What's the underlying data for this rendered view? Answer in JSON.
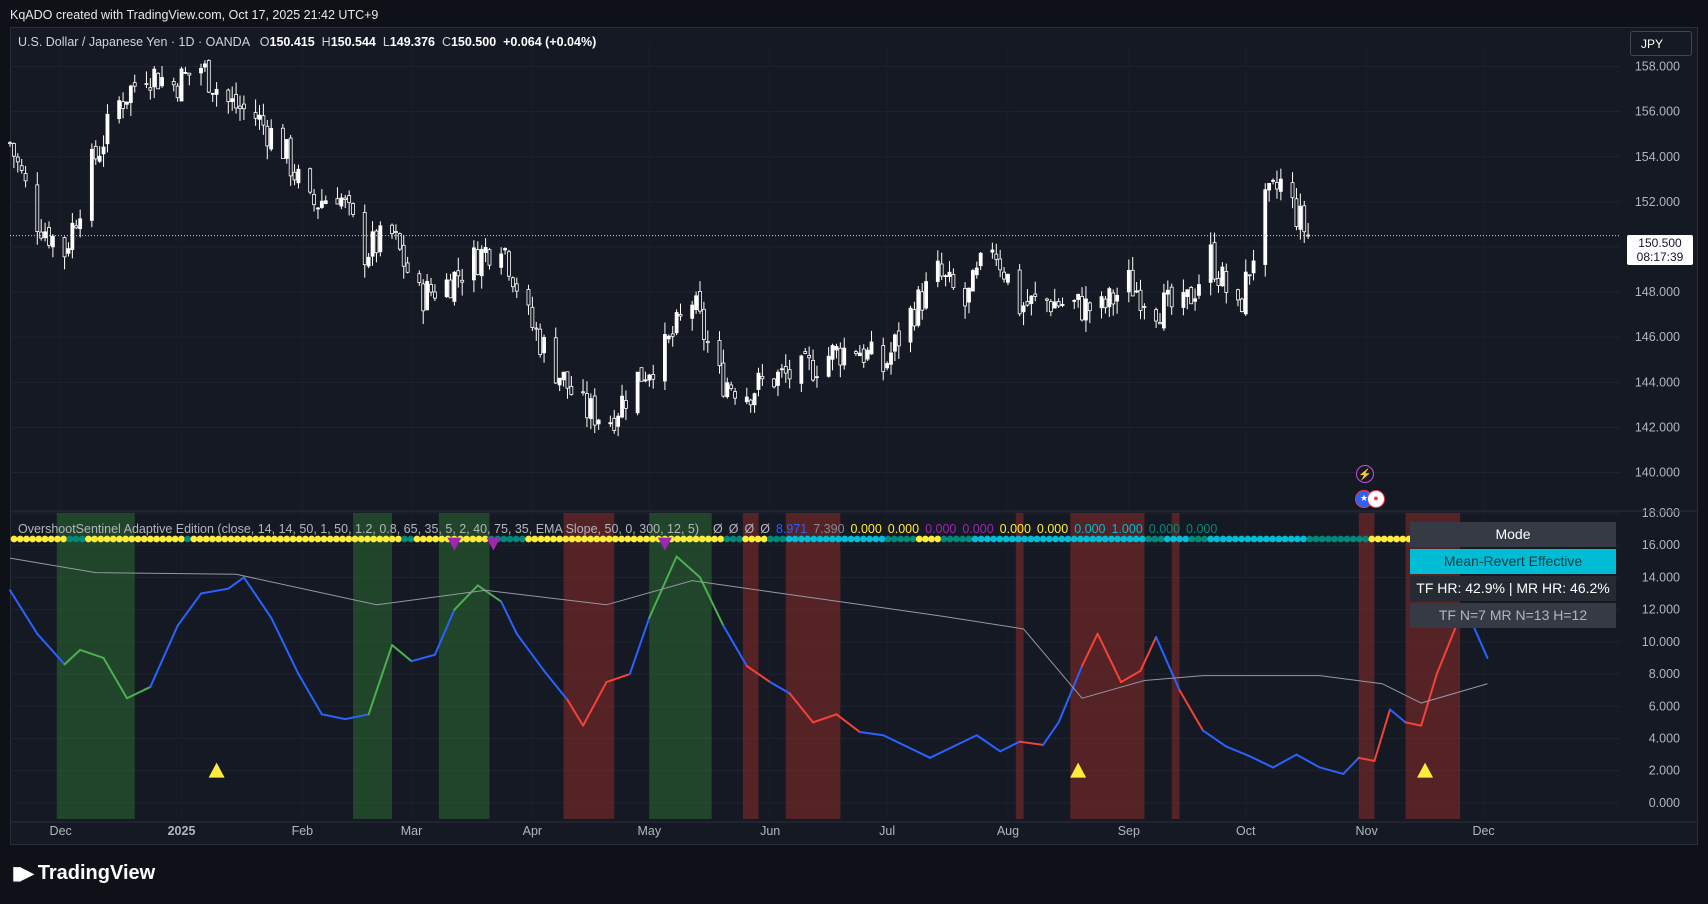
{
  "header": {
    "attribution": "KqADO created with TradingView.com, Oct 17, 2025 21:42 UTC+9"
  },
  "symbol": {
    "name": "U.S. Dollar / Japanese Yen · 1D · OANDA",
    "open_label": "O",
    "open": "150.415",
    "high_label": "H",
    "high": "150.544",
    "low_label": "L",
    "low": "149.376",
    "close_label": "C",
    "close": "150.500",
    "change": "+0.064 (+0.04%)",
    "currency_button": "JPY",
    "last_price": "150.500",
    "countdown": "08:17:39"
  },
  "indicator": {
    "legend_name": "OvershootSentinel Adaptive Edition (close, 14, 14, 50, 1, 50, 1.2, 0.8, 65, 35, 5, 2, 40, 75, 35, EMA Slope, 50, 0, 300, 12, 5)",
    "legend_values": [
      {
        "text": "Ø",
        "color": "#b2b5be"
      },
      {
        "text": "Ø",
        "color": "#b2b5be"
      },
      {
        "text": "Ø",
        "color": "#b2b5be"
      },
      {
        "text": "Ø",
        "color": "#b2b5be"
      },
      {
        "text": "8.971",
        "color": "#2962ff"
      },
      {
        "text": "7.390",
        "color": "#868993"
      },
      {
        "text": "0.000",
        "color": "#ffeb3b"
      },
      {
        "text": "0.000",
        "color": "#ffeb3b"
      },
      {
        "text": "0.000",
        "color": "#9c27b0"
      },
      {
        "text": "0.000",
        "color": "#9c27b0"
      },
      {
        "text": "0.000",
        "color": "#ffeb3b"
      },
      {
        "text": "0.000",
        "color": "#ffeb3b"
      },
      {
        "text": "0.000",
        "color": "#00bcd4"
      },
      {
        "text": "1.000",
        "color": "#00bcd4"
      },
      {
        "text": "0.000",
        "color": "#00897b"
      },
      {
        "text": "0.000",
        "color": "#00897b"
      }
    ],
    "mode_table": {
      "header": "Mode",
      "value": "Mean-Revert Effective",
      "hit_rates": "TF HR: 42.9% | MR HR: 46.2%",
      "counts": "TF N=7  MR N=13  H=12"
    }
  },
  "branding": {
    "logo_text": "TradingView"
  },
  "chart_data": [
    {
      "type": "candlestick",
      "title": "U.S. Dollar / Japanese Yen · 1D · OANDA",
      "ylim": [
        139.0,
        159.0
      ],
      "y_ticks": [
        "158.000",
        "156.000",
        "154.000",
        "152.000",
        "150.000",
        "148.000",
        "146.000",
        "144.000",
        "142.000",
        "140.000"
      ],
      "last_price_line": 150.5,
      "colors": {
        "up": "#ffffff",
        "down": "#ffffff",
        "price_line": "#ffffff"
      },
      "close_path": [
        [
          "2024-11-18",
          154.6
        ],
        [
          "2024-11-25",
          151.2
        ],
        [
          "2024-12-02",
          149.8
        ],
        [
          "2024-12-09",
          153.6
        ],
        [
          "2024-12-16",
          156.4
        ],
        [
          "2024-12-23",
          157.8
        ],
        [
          "2024-12-30",
          157.2
        ],
        [
          "2025-01-06",
          158.0
        ],
        [
          "2025-01-13",
          156.4
        ],
        [
          "2025-01-20",
          155.8
        ],
        [
          "2025-01-27",
          154.4
        ],
        [
          "2025-02-03",
          151.8
        ],
        [
          "2025-02-10",
          152.5
        ],
        [
          "2025-02-17",
          149.8
        ],
        [
          "2025-02-24",
          150.5
        ],
        [
          "2025-03-03",
          147.8
        ],
        [
          "2025-03-10",
          148.4
        ],
        [
          "2025-03-17",
          149.4
        ],
        [
          "2025-03-24",
          150.4
        ],
        [
          "2025-03-31",
          146.8
        ],
        [
          "2025-04-07",
          144.6
        ],
        [
          "2025-04-14",
          142.8
        ],
        [
          "2025-04-21",
          142.4
        ],
        [
          "2025-04-28",
          144.2
        ],
        [
          "2025-05-05",
          145.4
        ],
        [
          "2025-05-12",
          147.6
        ],
        [
          "2025-05-19",
          144.2
        ],
        [
          "2025-05-26",
          143.6
        ],
        [
          "2025-06-02",
          144.2
        ],
        [
          "2025-06-09",
          144.4
        ],
        [
          "2025-06-16",
          145.2
        ],
        [
          "2025-06-23",
          145.6
        ],
        [
          "2025-06-30",
          144.6
        ],
        [
          "2025-07-07",
          147.0
        ],
        [
          "2025-07-14",
          148.8
        ],
        [
          "2025-07-21",
          147.4
        ],
        [
          "2025-07-28",
          150.2
        ],
        [
          "2025-08-04",
          147.4
        ],
        [
          "2025-08-11",
          147.6
        ],
        [
          "2025-08-18",
          147.4
        ],
        [
          "2025-08-25",
          147.2
        ],
        [
          "2025-09-01",
          148.4
        ],
        [
          "2025-09-08",
          147.4
        ],
        [
          "2025-09-15",
          147.2
        ],
        [
          "2025-09-22",
          149.6
        ],
        [
          "2025-09-29",
          147.0
        ],
        [
          "2025-10-06",
          151.8
        ],
        [
          "2025-10-10",
          152.8
        ],
        [
          "2025-10-17",
          150.5
        ]
      ]
    },
    {
      "type": "line",
      "title": "OvershootSentinel Adaptive Edition",
      "ylim": [
        -1.0,
        18.0
      ],
      "y_ticks": [
        "18.000",
        "16.000",
        "14.000",
        "12.000",
        "10.000",
        "8.000",
        "6.000",
        "4.000",
        "2.000",
        "0.000"
      ],
      "x_tick_labels": [
        "Dec",
        "2025",
        "Feb",
        "Mar",
        "Apr",
        "May",
        "Jun",
        "Jul",
        "Aug",
        "Sep",
        "Oct",
        "Nov",
        "Dec"
      ],
      "series": [
        {
          "color": "#2962ff",
          "values": [
            [
              "2024-11-18",
              13.2
            ],
            [
              "2024-11-25",
              10.5
            ],
            [
              "2024-12-02",
              8.6
            ],
            [
              "2024-12-06",
              9.5
            ],
            [
              "2024-12-12",
              9.0
            ],
            [
              "2024-12-18",
              6.5
            ],
            [
              "2024-12-24",
              7.2
            ],
            [
              "2024-12-31",
              11.0
            ],
            [
              "2025-01-06",
              13.0
            ],
            [
              "2025-01-13",
              13.3
            ],
            [
              "2025-01-17",
              14.0
            ],
            [
              "2025-01-24",
              11.5
            ],
            [
              "2025-01-31",
              8.0
            ],
            [
              "2025-02-06",
              5.5
            ],
            [
              "2025-02-12",
              5.2
            ],
            [
              "2025-02-18",
              5.5
            ],
            [
              "2025-02-24",
              9.8
            ],
            [
              "2025-03-01",
              8.8
            ],
            [
              "2025-03-07",
              9.2
            ],
            [
              "2025-03-12",
              12.0
            ],
            [
              "2025-03-18",
              13.5
            ],
            [
              "2025-03-24",
              12.5
            ],
            [
              "2025-03-28",
              10.5
            ],
            [
              "2025-04-04",
              8.2
            ],
            [
              "2025-04-10",
              6.4
            ],
            [
              "2025-04-14",
              4.8
            ],
            [
              "2025-04-20",
              7.5
            ],
            [
              "2025-04-26",
              8.0
            ],
            [
              "2025-05-01",
              11.5
            ],
            [
              "2025-05-08",
              15.3
            ],
            [
              "2025-05-14",
              14.0
            ],
            [
              "2025-05-20",
              11.0
            ],
            [
              "2025-05-26",
              8.5
            ],
            [
              "2025-06-01",
              7.5
            ],
            [
              "2025-06-06",
              6.8
            ],
            [
              "2025-06-12",
              5.0
            ],
            [
              "2025-06-18",
              5.5
            ],
            [
              "2025-06-24",
              4.4
            ],
            [
              "2025-06-30",
              4.2
            ],
            [
              "2025-07-06",
              3.5
            ],
            [
              "2025-07-12",
              2.8
            ],
            [
              "2025-07-18",
              3.5
            ],
            [
              "2025-07-24",
              4.2
            ],
            [
              "2025-07-30",
              3.2
            ],
            [
              "2025-08-04",
              3.8
            ],
            [
              "2025-08-10",
              3.6
            ],
            [
              "2025-08-14",
              5.0
            ],
            [
              "2025-08-20",
              8.5
            ],
            [
              "2025-08-24",
              10.5
            ],
            [
              "2025-08-30",
              7.5
            ],
            [
              "2025-09-04",
              8.2
            ],
            [
              "2025-09-08",
              10.3
            ],
            [
              "2025-09-14",
              7.0
            ],
            [
              "2025-09-20",
              4.5
            ],
            [
              "2025-09-26",
              3.5
            ],
            [
              "2025-10-02",
              2.9
            ],
            [
              "2025-10-08",
              2.2
            ],
            [
              "2025-10-14",
              3.0
            ],
            [
              "2025-10-20",
              2.2
            ],
            [
              "2025-10-26",
              1.8
            ],
            [
              "2025-10-30",
              2.8
            ],
            [
              "2025-11-03",
              2.6
            ],
            [
              "2025-11-07",
              5.8
            ],
            [
              "2025-11-11",
              5.0
            ],
            [
              "2025-11-15",
              4.8
            ],
            [
              "2025-11-19",
              8.0
            ],
            [
              "2025-11-24",
              11.0
            ],
            [
              "2025-11-28",
              11.2
            ],
            [
              "2025-12-02",
              9.0
            ]
          ]
        },
        {
          "color": "#9598a1",
          "values": [
            [
              "2024-11-18",
              15.2
            ],
            [
              "2024-12-10",
              14.3
            ],
            [
              "2025-01-15",
              14.2
            ],
            [
              "2025-02-20",
              12.3
            ],
            [
              "2025-03-20",
              13.2
            ],
            [
              "2025-04-20",
              12.3
            ],
            [
              "2025-05-12",
              13.8
            ],
            [
              "2025-06-10",
              12.8
            ],
            [
              "2025-07-15",
              11.6
            ],
            [
              "2025-08-05",
              10.8
            ],
            [
              "2025-08-20",
              6.5
            ],
            [
              "2025-09-05",
              7.6
            ],
            [
              "2025-09-20",
              7.9
            ],
            [
              "2025-10-20",
              7.9
            ],
            [
              "2025-11-05",
              7.4
            ],
            [
              "2025-11-15",
              6.2
            ],
            [
              "2025-12-02",
              7.4
            ]
          ]
        }
      ],
      "signals_up": [
        "2025-01-10",
        "2025-08-19",
        "2025-11-16"
      ],
      "signals_down": [
        "2025-03-12",
        "2025-03-22",
        "2025-05-05"
      ],
      "zones_green": [
        [
          "2024-11-30",
          "2024-12-20"
        ],
        [
          "2025-02-14",
          "2025-02-24"
        ],
        [
          "2025-03-08",
          "2025-03-21"
        ],
        [
          "2025-05-01",
          "2025-05-17"
        ]
      ],
      "zones_red": [
        [
          "2025-04-09",
          "2025-04-22"
        ],
        [
          "2025-05-25",
          "2025-05-29"
        ],
        [
          "2025-06-05",
          "2025-06-19"
        ],
        [
          "2025-08-03",
          "2025-08-05"
        ],
        [
          "2025-08-17",
          "2025-09-05"
        ],
        [
          "2025-09-12",
          "2025-09-14"
        ],
        [
          "2025-10-30",
          "2025-11-03"
        ],
        [
          "2025-11-11",
          "2025-11-25"
        ]
      ]
    }
  ]
}
